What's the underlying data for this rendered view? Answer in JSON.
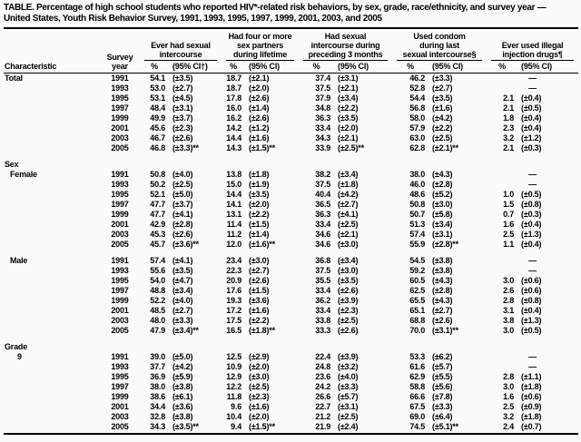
{
  "table": {
    "title": "TABLE. Percentage of high school students who reported HIV*-related risk behaviors, by sex, grade, race/ethnicity, and survey year —\nUnited States, Youth Risk Behavior Survey, 1991, 1993, 1995, 1997, 1999, 2001, 2003, and 2005",
    "columns": {
      "characteristic": "Characteristic",
      "survey_year": "Survey\nyear",
      "groups": [
        {
          "label": "Ever had sexual\nintercourse",
          "pct": "%",
          "ci": "(95% CI†)"
        },
        {
          "label": "Had four or more\nsex partners\nduring lifetime",
          "pct": "%",
          "ci": "(95% CI)"
        },
        {
          "label": "Had sexual\nintercourse during\npreceding 3 months",
          "pct": "%",
          "ci": "(95% CI)"
        },
        {
          "label": "Used condom\nduring last\nsexual intercourse§",
          "pct": "%",
          "ci": "(95% CI)"
        },
        {
          "label": "Ever used illegal\ninjection drugs¶",
          "pct": "%",
          "ci": "(95% CI)"
        }
      ]
    },
    "no_data_marker": "—",
    "sections": [
      {
        "header": "",
        "label": "Total",
        "indent": 0,
        "gap": false,
        "rows": [
          {
            "year": "1991",
            "v": [
              "54.1",
              "(±3.5)",
              "18.7",
              "(±2.1)",
              "37.4",
              "(±3.1)",
              "46.2",
              "(±3.3)",
              "—",
              ""
            ]
          },
          {
            "year": "1993",
            "v": [
              "53.0",
              "(±2.7)",
              "18.7",
              "(±2.0)",
              "37.5",
              "(±2.1)",
              "52.8",
              "(±2.7)",
              "—",
              ""
            ]
          },
          {
            "year": "1995",
            "v": [
              "53.1",
              "(±4.5)",
              "17.8",
              "(±2.6)",
              "37.9",
              "(±3.4)",
              "54.4",
              "(±3.5)",
              "2.1",
              "(±0.4)"
            ]
          },
          {
            "year": "1997",
            "v": [
              "48.4",
              "(±3.1)",
              "16.0",
              "(±1.4)",
              "34.8",
              "(±2.2)",
              "56.8",
              "(±1.6)",
              "2.1",
              "(±0.5)"
            ]
          },
          {
            "year": "1999",
            "v": [
              "49.9",
              "(±3.7)",
              "16.2",
              "(±2.6)",
              "36.3",
              "(±3.5)",
              "58.0",
              "(±4.2)",
              "1.8",
              "(±0.4)"
            ]
          },
          {
            "year": "2001",
            "v": [
              "45.6",
              "(±2.3)",
              "14.2",
              "(±1.2)",
              "33.4",
              "(±2.0)",
              "57.9",
              "(±2.2)",
              "2.3",
              "(±0.4)"
            ]
          },
          {
            "year": "2003",
            "v": [
              "46.7",
              "(±2.6)",
              "14.4",
              "(±1.6)",
              "34.3",
              "(±2.1)",
              "63.0",
              "(±2.5)",
              "3.2",
              "(±1.2)"
            ]
          },
          {
            "year": "2005",
            "v": [
              "46.8",
              "(±3.3)**",
              "14.3",
              "(±1.5)**",
              "33.9",
              "(±2.5)**",
              "62.8",
              "(±2.1)**",
              "2.1",
              "(±0.3)"
            ]
          }
        ]
      },
      {
        "header": "Sex",
        "label": "Female",
        "indent": 1,
        "gap": true,
        "rows": [
          {
            "year": "1991",
            "v": [
              "50.8",
              "(±4.0)",
              "13.8",
              "(±1.8)",
              "38.2",
              "(±3.4)",
              "38.0",
              "(±4.3)",
              "—",
              ""
            ]
          },
          {
            "year": "1993",
            "v": [
              "50.2",
              "(±2.5)",
              "15.0",
              "(±1.9)",
              "37.5",
              "(±1.8)",
              "46.0",
              "(±2.8)",
              "—",
              ""
            ]
          },
          {
            "year": "1995",
            "v": [
              "52.1",
              "(±5.0)",
              "14.4",
              "(±3.5)",
              "40.4",
              "(±4.2)",
              "48.6",
              "(±5.2)",
              "1.0",
              "(±0.5)"
            ]
          },
          {
            "year": "1997",
            "v": [
              "47.7",
              "(±3.7)",
              "14.1",
              "(±2.0)",
              "36.5",
              "(±2.7)",
              "50.8",
              "(±3.0)",
              "1.5",
              "(±0.8)"
            ]
          },
          {
            "year": "1999",
            "v": [
              "47.7",
              "(±4.1)",
              "13.1",
              "(±2.2)",
              "36.3",
              "(±4.1)",
              "50.7",
              "(±5.8)",
              "0.7",
              "(±0.3)"
            ]
          },
          {
            "year": "2001",
            "v": [
              "42.9",
              "(±2.8)",
              "11.4",
              "(±1.5)",
              "33.4",
              "(±2.5)",
              "51.3",
              "(±3.4)",
              "1.6",
              "(±0.4)"
            ]
          },
          {
            "year": "2003",
            "v": [
              "45.3",
              "(±2.6)",
              "11.2",
              "(±1.4)",
              "34.6",
              "(±2.1)",
              "57.4",
              "(±3.1)",
              "2.5",
              "(±1.3)"
            ]
          },
          {
            "year": "2005",
            "v": [
              "45.7",
              "(±3.6)**",
              "12.0",
              "(±1.6)**",
              "34.6",
              "(±3.0)",
              "55.9",
              "(±2.8)**",
              "1.1",
              "(±0.4)"
            ]
          }
        ]
      },
      {
        "header": "",
        "label": "Male",
        "indent": 1,
        "gap": true,
        "rows": [
          {
            "year": "1991",
            "v": [
              "57.4",
              "(±4.1)",
              "23.4",
              "(±3.0)",
              "36.8",
              "(±3.4)",
              "54.5",
              "(±3.8)",
              "—",
              ""
            ]
          },
          {
            "year": "1993",
            "v": [
              "55.6",
              "(±3.5)",
              "22.3",
              "(±2.7)",
              "37.5",
              "(±3.0)",
              "59.2",
              "(±3.8)",
              "—",
              ""
            ]
          },
          {
            "year": "1995",
            "v": [
              "54.0",
              "(±4.7)",
              "20.9",
              "(±2.6)",
              "35.5",
              "(±3.5)",
              "60.5",
              "(±4.3)",
              "3.0",
              "(±0.6)"
            ]
          },
          {
            "year": "1997",
            "v": [
              "48.8",
              "(±3.4)",
              "17.6",
              "(±1.5)",
              "33.4",
              "(±2.6)",
              "62.5",
              "(±2.8)",
              "2.6",
              "(±0.6)"
            ]
          },
          {
            "year": "1999",
            "v": [
              "52.2",
              "(±4.0)",
              "19.3",
              "(±3.6)",
              "36.2",
              "(±3.9)",
              "65.5",
              "(±4.3)",
              "2.8",
              "(±0.8)"
            ]
          },
          {
            "year": "2001",
            "v": [
              "48.5",
              "(±2.7)",
              "17.2",
              "(±1.6)",
              "33.4",
              "(±2.3)",
              "65.1",
              "(±2.7)",
              "3.1",
              "(±0.4)"
            ]
          },
          {
            "year": "2003",
            "v": [
              "48.0",
              "(±3.3)",
              "17.5",
              "(±2.2)",
              "33.8",
              "(±2.5)",
              "68.8",
              "(±2.6)",
              "3.8",
              "(±1.3)"
            ]
          },
          {
            "year": "2005",
            "v": [
              "47.9",
              "(±3.4)**",
              "16.5",
              "(±1.8)**",
              "33.3",
              "(±2.6)",
              "70.0",
              "(±3.1)**",
              "3.0",
              "(±0.5)"
            ]
          }
        ]
      },
      {
        "header": "Grade",
        "label": "9",
        "indent": 2,
        "gap": true,
        "rows": [
          {
            "year": "1991",
            "v": [
              "39.0",
              "(±5.0)",
              "12.5",
              "(±2.9)",
              "22.4",
              "(±3.9)",
              "53.3",
              "(±6.2)",
              "—",
              ""
            ]
          },
          {
            "year": "1993",
            "v": [
              "37.7",
              "(±4.2)",
              "10.9",
              "(±2.0)",
              "24.8",
              "(±3.2)",
              "61.6",
              "(±5.7)",
              "—",
              ""
            ]
          },
          {
            "year": "1995",
            "v": [
              "36.9",
              "(±5.9)",
              "12.9",
              "(±3.0)",
              "23.6",
              "(±4.0)",
              "62.9",
              "(±5.5)",
              "2.8",
              "(±1.1)"
            ]
          },
          {
            "year": "1997",
            "v": [
              "38.0",
              "(±3.8)",
              "12.2",
              "(±2.5)",
              "24.2",
              "(±3.3)",
              "58.8",
              "(±5.6)",
              "3.0",
              "(±1.8)"
            ]
          },
          {
            "year": "1999",
            "v": [
              "38.6",
              "(±6.1)",
              "11.8",
              "(±2.3)",
              "26.6",
              "(±5.7)",
              "66.6",
              "(±7.8)",
              "1.6",
              "(±0.6)"
            ]
          },
          {
            "year": "2001",
            "v": [
              "34.4",
              "(±3.6)",
              "9.6",
              "(±1.6)",
              "22.7",
              "(±3.1)",
              "67.5",
              "(±3.3)",
              "2.5",
              "(±0.9)"
            ]
          },
          {
            "year": "2003",
            "v": [
              "32.8",
              "(±3.8)",
              "10.4",
              "(±2.0)",
              "21.2",
              "(±2.5)",
              "69.0",
              "(±6.4)",
              "3.2",
              "(±1.8)"
            ]
          },
          {
            "year": "2005",
            "v": [
              "34.3",
              "(±3.5)**",
              "9.4",
              "(±1.5)**",
              "21.9",
              "(±2.4)",
              "74.5",
              "(±5.1)**",
              "2.4",
              "(±0.7)"
            ]
          }
        ]
      }
    ]
  }
}
